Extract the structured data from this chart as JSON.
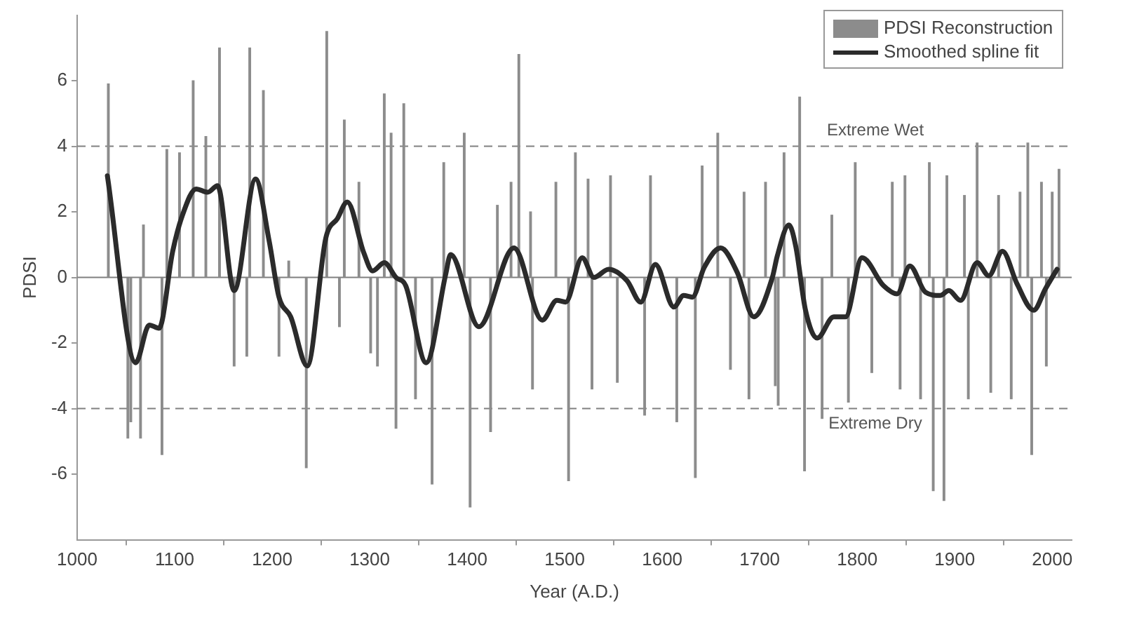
{
  "chart_data": {
    "type": "bar",
    "xlabel": "Year (A.D.)",
    "ylabel": "PDSI",
    "xlim": [
      1000,
      2020
    ],
    "ylim": [
      -8,
      8
    ],
    "xticks": [
      1000,
      1100,
      1200,
      1300,
      1400,
      1500,
      1600,
      1700,
      1800,
      1900,
      2000
    ],
    "yticks": [
      -6,
      -4,
      -2,
      0,
      2,
      4,
      6
    ],
    "grid": false,
    "legend": "top right",
    "ref_lines": [
      {
        "axis": "y",
        "value": 4,
        "label": "Extreme Wet",
        "color": "#808080",
        "line_style": "dashed"
      },
      {
        "axis": "y",
        "value": -4,
        "label": "Extreme Dry",
        "color": "#808080",
        "line_style": "dashed"
      },
      {
        "axis": "y",
        "value": 0,
        "color": "#808080",
        "line_style": "solid"
      }
    ],
    "series": [
      {
        "name": "PDSI Reconstruction",
        "color": "#8c8c8c",
        "x": [
          1032,
          1052,
          1055,
          1065,
          1068,
          1087,
          1092,
          1105,
          1119,
          1132,
          1146,
          1161,
          1174,
          1177,
          1191,
          1207,
          1217,
          1235,
          1256,
          1269,
          1274,
          1289,
          1301,
          1308,
          1315,
          1322,
          1327,
          1335,
          1347,
          1364,
          1376,
          1397,
          1403,
          1424,
          1431,
          1445,
          1453,
          1465,
          1467,
          1491,
          1504,
          1511,
          1524,
          1528,
          1547,
          1554,
          1582,
          1588,
          1615,
          1634,
          1641,
          1657,
          1670,
          1684,
          1689,
          1706,
          1716,
          1719,
          1725,
          1741,
          1746,
          1764,
          1774,
          1791,
          1798,
          1815,
          1836,
          1844,
          1849,
          1865,
          1874,
          1878,
          1889,
          1892,
          1910,
          1914,
          1923,
          1937,
          1945,
          1958,
          1967,
          1975,
          1979,
          1989,
          1994,
          2000,
          2007
        ],
        "values": [
          5.9,
          -4.9,
          -4.4,
          -4.9,
          1.6,
          -5.4,
          3.9,
          3.8,
          6.0,
          4.3,
          7.0,
          -2.7,
          -2.4,
          7.0,
          5.7,
          -2.4,
          0.5,
          -5.8,
          7.5,
          -1.5,
          4.8,
          2.9,
          -2.3,
          -2.7,
          5.6,
          4.4,
          -4.6,
          5.3,
          -3.7,
          -6.3,
          3.5,
          4.4,
          -7.0,
          -4.7,
          2.2,
          2.9,
          6.8,
          2.0,
          -3.4,
          2.9,
          -6.2,
          3.8,
          3.0,
          -3.4,
          3.1,
          -3.2,
          -4.2,
          3.1,
          -4.4,
          -6.1,
          3.4,
          4.4,
          -2.8,
          2.6,
          -3.7,
          2.9,
          -3.3,
          -3.9,
          3.8,
          5.5,
          -5.9,
          -4.3,
          1.9,
          -3.8,
          3.5,
          -2.9,
          2.9,
          -3.4,
          3.1,
          -3.7,
          3.5,
          -6.5,
          -6.8,
          3.1,
          2.5,
          -3.7,
          4.1,
          -3.5,
          2.5,
          -3.7,
          2.6,
          4.1,
          -5.4,
          2.9,
          -2.7,
          2.6,
          3.3
        ]
      },
      {
        "name": "Smoothed spline fit",
        "type": "line",
        "color": "#2b2b2b",
        "x": [
          1031,
          1060,
          1074,
          1084,
          1098,
          1108,
          1122,
          1134,
          1144,
          1161,
          1183,
          1197,
          1207,
          1219,
          1236,
          1255,
          1267,
          1277,
          1294,
          1303,
          1315,
          1327,
          1337,
          1358,
          1378,
          1383,
          1412,
          1448,
          1477,
          1492,
          1501,
          1518,
          1530,
          1545,
          1564,
          1578,
          1593,
          1612,
          1622,
          1631,
          1643,
          1660,
          1677,
          1694,
          1713,
          1718,
          1730,
          1737,
          1747,
          1759,
          1776,
          1788,
          1805,
          1827,
          1841,
          1854,
          1870,
          1885,
          1894,
          1906,
          1923,
          1935,
          1949,
          1964,
          1981,
          1993,
          2005
        ],
        "values": [
          3.1,
          -2.6,
          -1.45,
          -1.55,
          0.8,
          1.9,
          2.7,
          2.6,
          2.8,
          -0.4,
          3.0,
          1.1,
          -0.6,
          -1.2,
          -2.7,
          1.2,
          1.8,
          2.3,
          0.75,
          0.2,
          0.45,
          0.0,
          -0.25,
          -2.6,
          0.1,
          0.7,
          -1.5,
          0.9,
          -1.3,
          -0.7,
          -0.75,
          0.6,
          0.0,
          0.25,
          -0.1,
          -0.75,
          0.4,
          -0.9,
          -0.55,
          -0.6,
          0.3,
          0.9,
          0.15,
          -1.2,
          0.0,
          0.65,
          1.6,
          0.95,
          -1.0,
          -1.85,
          -1.2,
          -1.2,
          0.6,
          -0.25,
          -0.5,
          0.35,
          -0.45,
          -0.55,
          -0.4,
          -0.7,
          0.45,
          0.05,
          0.8,
          -0.2,
          -1.0,
          -0.35,
          0.25
        ]
      }
    ]
  }
}
